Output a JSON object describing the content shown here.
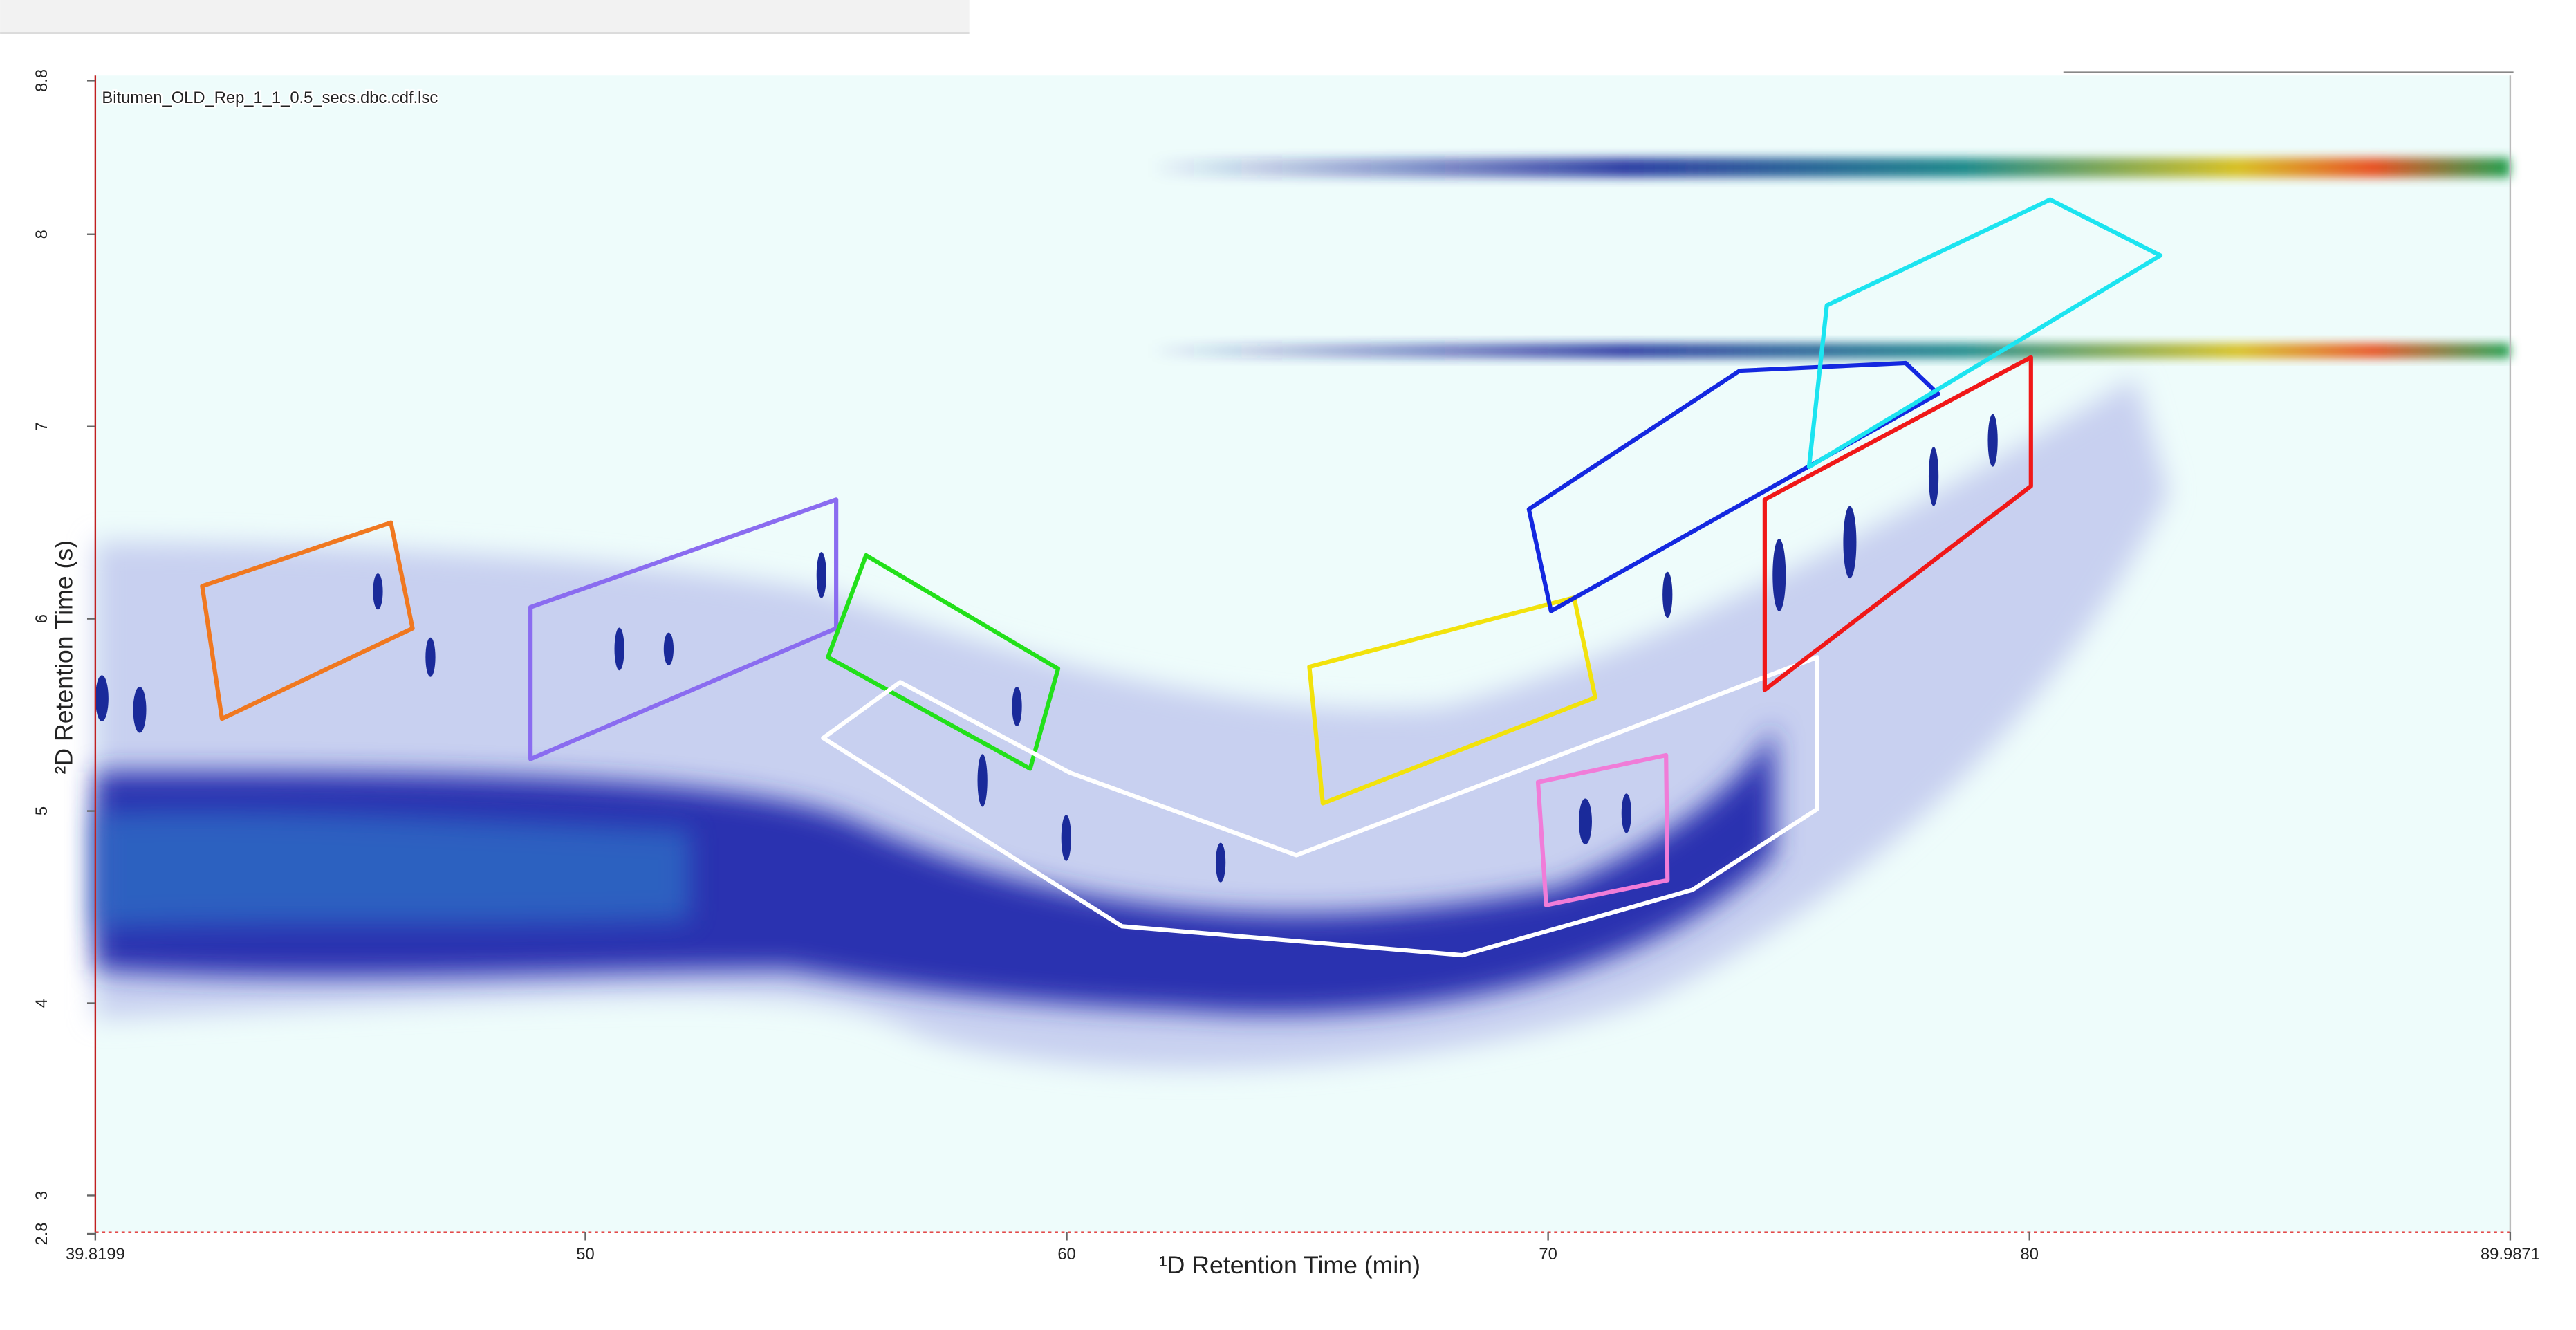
{
  "chart_data": {
    "type": "contour",
    "title": "Bitumen_OLD_Rep_1_1_0.5_secs.dbc.cdf.lsc",
    "x_label": "¹D Retention Time (min)",
    "y_label": "²D Retention Time (s)",
    "xlim": [
      39.8199,
      89.9871
    ],
    "xticks": [
      39.8199,
      50,
      60,
      70,
      80,
      89.9871
    ],
    "ylim": [
      2.8,
      8.8
    ],
    "yticks": [
      2.8,
      3,
      4,
      5,
      6,
      7,
      8,
      8.8
    ],
    "regions": [
      {
        "color": "#f07820",
        "x": [
          42.04,
          45.96,
          46.41,
          42.45
        ],
        "y": [
          6.17,
          6.5,
          5.95,
          5.48
        ]
      },
      {
        "color": "#8a6cf0",
        "x": [
          48.86,
          55.21,
          55.21,
          48.86
        ],
        "y": [
          6.06,
          6.62,
          5.95,
          5.27
        ]
      },
      {
        "color": "#22e01a",
        "x": [
          55.83,
          59.82,
          59.24,
          55.04
        ],
        "y": [
          6.33,
          5.74,
          5.22,
          5.8
        ]
      },
      {
        "color": "#ffffff",
        "x": [
          54.94,
          56.54,
          60.06,
          64.77,
          75.59,
          75.59,
          73.0,
          68.22,
          61.15
        ],
        "y": [
          5.38,
          5.67,
          5.2,
          4.77,
          5.8,
          5.01,
          4.59,
          4.25,
          4.4
        ]
      },
      {
        "color": "#f2e20c",
        "x": [
          65.04,
          70.54,
          70.98,
          65.32
        ],
        "y": [
          5.75,
          6.11,
          5.59,
          5.04
        ]
      },
      {
        "color": "#f07cd8",
        "x": [
          69.79,
          72.45,
          72.48,
          69.96
        ],
        "y": [
          5.15,
          5.29,
          4.64,
          4.51
        ]
      },
      {
        "color": "#1428e0",
        "x": [
          69.6,
          70.06,
          78.1,
          77.43,
          73.98
        ],
        "y": [
          6.57,
          6.04,
          7.17,
          7.33,
          7.29
        ]
      },
      {
        "color": "#f01818",
        "x": [
          74.5,
          80.03,
          80.03,
          74.5
        ],
        "y": [
          6.62,
          7.36,
          6.69,
          5.63
        ]
      },
      {
        "color": "#1ce4f0",
        "x": [
          75.79,
          80.43,
          82.72,
          75.42
        ],
        "y": [
          7.63,
          8.18,
          7.89,
          6.79
        ]
      }
    ]
  }
}
